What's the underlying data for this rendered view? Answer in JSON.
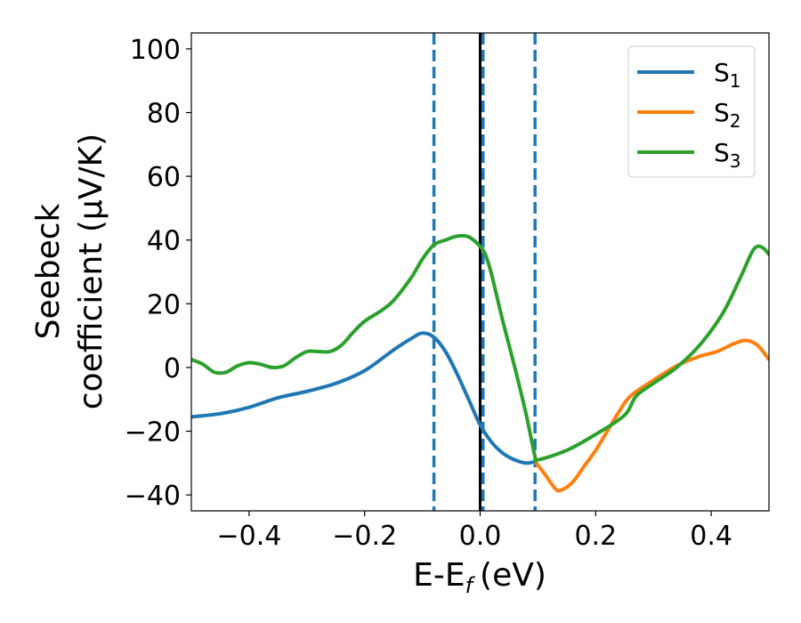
{
  "chart_data": {
    "type": "line",
    "xlabel": "E-E",
    "xlabel_sub": "f",
    "xlabel_unit": "(eV)",
    "ylabel_line1": "Seebeck",
    "ylabel_line2": "coefficient  (μV/K)",
    "xlim": [
      -0.5,
      0.5
    ],
    "ylim": [
      -45,
      105
    ],
    "x_ticks": [
      -0.4,
      -0.2,
      0.0,
      0.2,
      0.4
    ],
    "x_tick_labels": [
      "−0.4",
      "−0.2",
      "0.0",
      "0.2",
      "0.4"
    ],
    "y_ticks": [
      -40,
      -20,
      0,
      20,
      40,
      60,
      80,
      100
    ],
    "y_tick_labels": [
      "−40",
      "−20",
      "0",
      "20",
      "40",
      "60",
      "80",
      "100"
    ],
    "grid": false,
    "legend_position": "top-right",
    "vertical_lines": [
      {
        "x": -0.08,
        "style": "dashed",
        "color": "#1f77b4"
      },
      {
        "x": 0.005,
        "style": "dashed",
        "color": "#1f77b4"
      },
      {
        "x": 0.095,
        "style": "dashed",
        "color": "#1f77b4"
      },
      {
        "x": 0.0,
        "style": "solid",
        "color": "#000000"
      }
    ],
    "series": [
      {
        "name": "S",
        "name_sub": "1",
        "color": "#1f77b4",
        "points": [
          [
            -0.5,
            -15.5
          ],
          [
            -0.45,
            -14.5
          ],
          [
            -0.4,
            -12.5
          ],
          [
            -0.35,
            -9.5
          ],
          [
            -0.3,
            -7.5
          ],
          [
            -0.25,
            -5
          ],
          [
            -0.2,
            -1
          ],
          [
            -0.15,
            5.5
          ],
          [
            -0.12,
            9
          ],
          [
            -0.1,
            10.8
          ],
          [
            -0.08,
            9.5
          ],
          [
            -0.06,
            5
          ],
          [
            -0.04,
            -2
          ],
          [
            -0.02,
            -10
          ],
          [
            0.0,
            -18
          ],
          [
            0.02,
            -23.5
          ],
          [
            0.04,
            -27
          ],
          [
            0.06,
            -29
          ],
          [
            0.08,
            -30
          ],
          [
            0.095,
            -29.5
          ]
        ]
      },
      {
        "name": "S",
        "name_sub": "2",
        "color": "#ff7f0e",
        "points": [
          [
            0.095,
            -29.5
          ],
          [
            0.11,
            -33
          ],
          [
            0.13,
            -38
          ],
          [
            0.14,
            -38.5
          ],
          [
            0.16,
            -36
          ],
          [
            0.18,
            -31
          ],
          [
            0.2,
            -26
          ],
          [
            0.22,
            -20
          ],
          [
            0.24,
            -14
          ],
          [
            0.26,
            -9
          ],
          [
            0.3,
            -4
          ],
          [
            0.34,
            0.5
          ],
          [
            0.38,
            3.5
          ],
          [
            0.41,
            5
          ],
          [
            0.44,
            7.5
          ],
          [
            0.46,
            8.5
          ],
          [
            0.48,
            7
          ],
          [
            0.5,
            2.5
          ]
        ]
      },
      {
        "name": "S",
        "name_sub": "3",
        "color": "#2ca02c",
        "points": [
          [
            -0.5,
            2.5
          ],
          [
            -0.48,
            1
          ],
          [
            -0.46,
            -1.5
          ],
          [
            -0.44,
            -1.5
          ],
          [
            -0.42,
            0.5
          ],
          [
            -0.4,
            1.5
          ],
          [
            -0.38,
            1
          ],
          [
            -0.36,
            0
          ],
          [
            -0.34,
            0.5
          ],
          [
            -0.32,
            3
          ],
          [
            -0.3,
            5
          ],
          [
            -0.28,
            5
          ],
          [
            -0.26,
            5
          ],
          [
            -0.24,
            7
          ],
          [
            -0.22,
            11
          ],
          [
            -0.2,
            14.5
          ],
          [
            -0.17,
            18
          ],
          [
            -0.15,
            21
          ],
          [
            -0.12,
            28
          ],
          [
            -0.1,
            34
          ],
          [
            -0.08,
            38.5
          ],
          [
            -0.06,
            40
          ],
          [
            -0.04,
            41.2
          ],
          [
            -0.02,
            41
          ],
          [
            0.0,
            38
          ],
          [
            0.01,
            35
          ],
          [
            0.02,
            29
          ],
          [
            0.04,
            14
          ],
          [
            0.06,
            0
          ],
          [
            0.08,
            -15
          ],
          [
            0.095,
            -28
          ],
          [
            0.1,
            -29
          ],
          [
            0.15,
            -26
          ],
          [
            0.2,
            -21
          ],
          [
            0.25,
            -15
          ],
          [
            0.27,
            -9
          ],
          [
            0.3,
            -5
          ],
          [
            0.34,
            0
          ],
          [
            0.38,
            7
          ],
          [
            0.42,
            17
          ],
          [
            0.45,
            28
          ],
          [
            0.47,
            36
          ],
          [
            0.48,
            38
          ],
          [
            0.49,
            37.5
          ],
          [
            0.5,
            35.5
          ]
        ]
      }
    ]
  }
}
